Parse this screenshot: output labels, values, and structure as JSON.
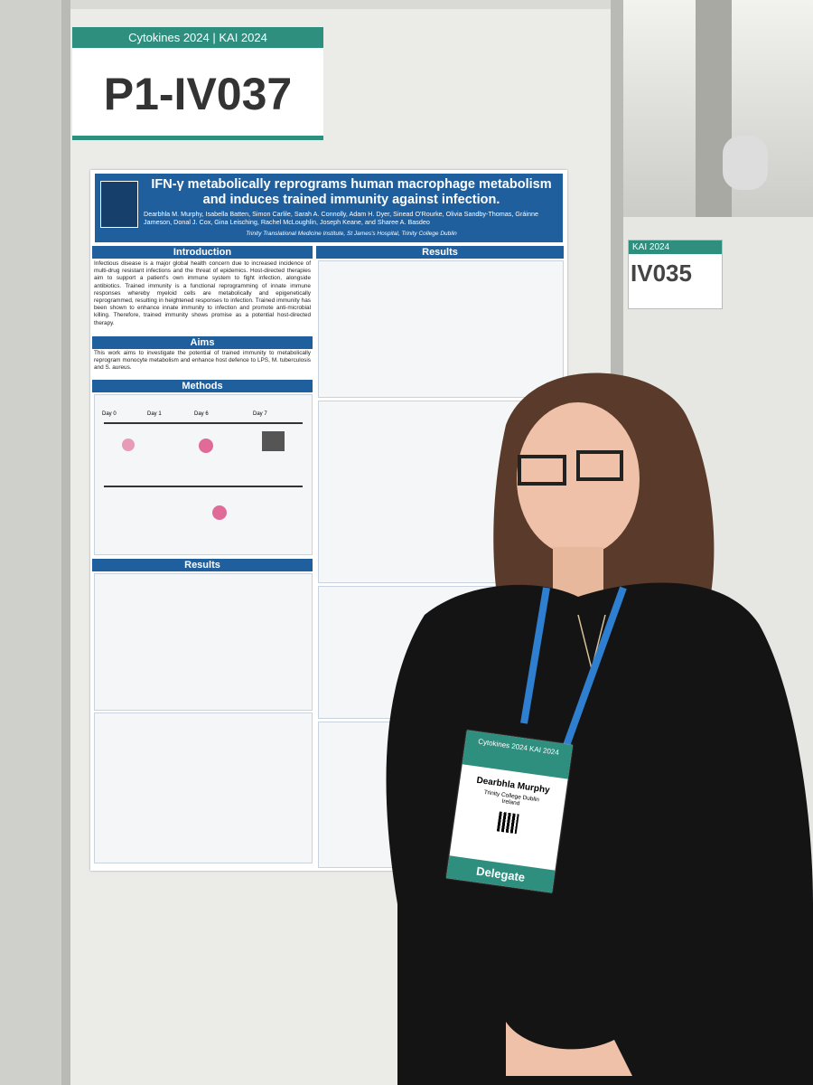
{
  "board": {
    "event": "Cytokines 2024 | KAI 2024",
    "id": "P1-IV037"
  },
  "neighbor_board": {
    "event": "KAI 2024",
    "id": "IV035"
  },
  "poster": {
    "title": "IFN-γ metabolically reprograms human macrophage metabolism and induces trained immunity against infection.",
    "authors": "Dearbhla M. Murphy, Isabella Batten, Simon Carlile, Sarah A. Connolly, Adam H. Dyer, Sinead O'Rourke, Olivia Sandby-Thomas, Gráinne Jameson, Donal J. Cox, Gina Leisching, Rachel McLoughlin, Joseph Keane, and Sharee A. Basdeo",
    "affiliation": "Trinity Translational Medicine Institute, St James's Hospital, Trinity College Dublin",
    "introduction": {
      "heading": "Introduction",
      "text": "Infectious disease is a major global health concern due to increased incidence of multi-drug resistant infections and the threat of epidemics. Host-directed therapies aim to support a patient's own immune system to fight infection, alongside antibiotics. Trained immunity is a functional reprogramming of innate immune responses whereby myeloid cells are metabolically and epigenetically reprogrammed, resulting in heightened responses to infection. Trained immunity has been shown to enhance innate immunity to infection and promote anti-microbial killing. Therefore, trained immunity shows promise as a potential host-directed therapy."
    },
    "aims": {
      "heading": "Aims",
      "text": "This work aims to investigate the potential of trained immunity to metabolically reprogram monocyte metabolism and enhance host defence to LPS, M. tuberculosis and S. aureus."
    },
    "methods": {
      "heading": "Methods",
      "steps": [
        "Day 0",
        "Day 1",
        "Day 6",
        "Day 7"
      ]
    },
    "results_left": {
      "heading": "Results"
    },
    "results_right": {
      "heading": "Results"
    }
  },
  "badge": {
    "event": "Cytokines 2024 KAI 2024",
    "name": "Dearbhla Murphy",
    "organisation": "Trinity College Dublin",
    "country": "Ireland",
    "role": "Delegate"
  }
}
